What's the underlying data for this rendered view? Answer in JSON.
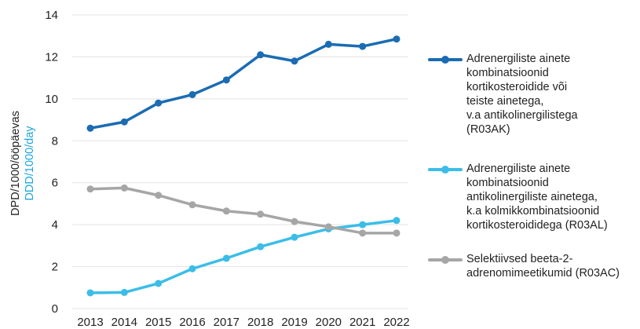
{
  "chart_data": {
    "type": "line",
    "categories": [
      "2013",
      "2014",
      "2015",
      "2016",
      "2017",
      "2018",
      "2019",
      "2020",
      "2021",
      "2022"
    ],
    "ylim": [
      0,
      14
    ],
    "yticks": [
      0,
      2,
      4,
      6,
      8,
      10,
      12,
      14
    ],
    "ylabel_line1": "DPD/1000/ööpäevas",
    "ylabel_line2": "DDD/1000/day",
    "grid": true,
    "legend_position": "right",
    "series": [
      {
        "name": "Adrenergiliste ainete\nkombinatsioonid\nkortikosteroidide või\nteiste ainetega,\nv.a antikolinergilistega\n(R03AK)",
        "color": "#1a6cb3",
        "values": [
          8.6,
          8.9,
          9.8,
          10.2,
          10.9,
          12.1,
          11.8,
          12.6,
          12.5,
          12.85
        ]
      },
      {
        "name": "Adrenergiliste ainete\nkombinatsioonid\nantikolinergiliste ainetega,\nk.a kolmikkombinatsioonid\nkortikosteroididega (R03AL)",
        "color": "#3bbde8",
        "values": [
          0.75,
          0.77,
          1.2,
          1.9,
          2.4,
          2.95,
          3.4,
          3.8,
          4.0,
          4.2
        ]
      },
      {
        "name": "Selektiivsed beeta-2-\nadrenomimeetikumid (R03AC)",
        "color": "#a6a6a6",
        "values": [
          5.7,
          5.75,
          5.4,
          4.95,
          4.65,
          4.5,
          4.15,
          3.9,
          3.6,
          3.6
        ]
      }
    ],
    "ylabel_colors": [
      "#222222",
      "#1aa6dd"
    ]
  }
}
